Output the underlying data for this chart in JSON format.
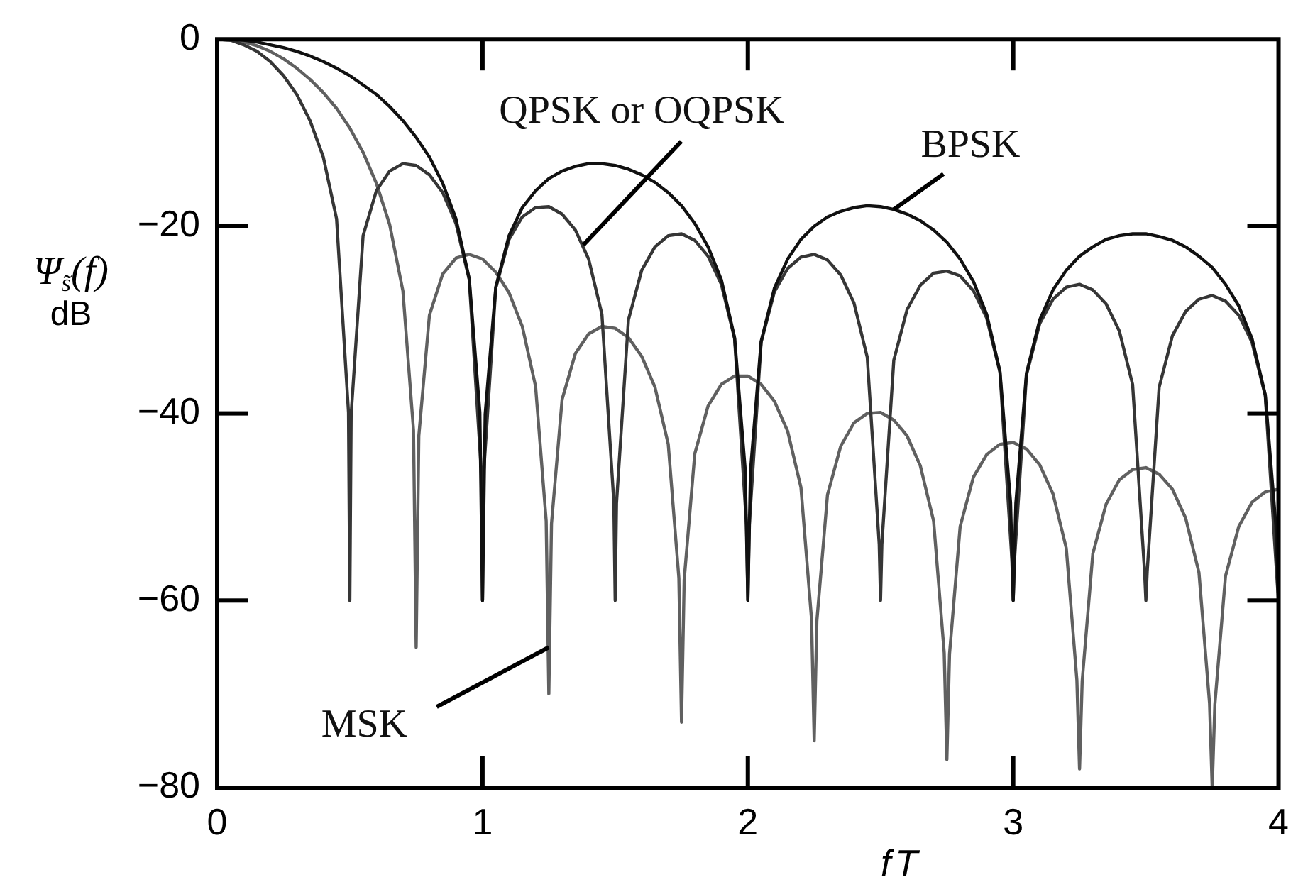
{
  "chart_data": {
    "type": "line",
    "xlabel": "fT",
    "ylabel": "Ψ$_{s̃}$(f)\ndB",
    "xlim": [
      0,
      4
    ],
    "xticks": [
      0,
      1,
      2,
      3,
      4
    ],
    "ylim": [
      -80,
      0
    ],
    "yticks": [
      {
        "value": -80,
        "label": "−80"
      },
      {
        "value": -60,
        "label": "−60"
      },
      {
        "value": -40,
        "label": "−40"
      },
      {
        "value": -20,
        "label": "−20"
      },
      0
    ],
    "annotations": [
      {
        "text": "QPSK or OQPSK",
        "x": 1.38,
        "y": -22
      },
      {
        "text": "BPSK",
        "x": 2.55,
        "y": -18.2
      },
      {
        "text": "MSK",
        "x": 1.25,
        "y": -65
      }
    ],
    "series": [
      {
        "color": "#111111",
        "x": [
          0,
          0.05,
          0.1,
          0.15,
          0.2,
          0.25,
          0.3,
          0.35,
          0.4,
          0.45,
          0.5,
          0.55,
          0.6,
          0.65,
          0.7,
          0.75,
          0.8,
          0.85,
          0.9,
          0.95,
          0.99,
          1,
          1.01,
          1.05,
          1.1,
          1.15,
          1.2,
          1.25,
          1.3,
          1.35,
          1.4,
          1.45,
          1.5,
          1.55,
          1.6,
          1.65,
          1.7,
          1.75,
          1.8,
          1.85,
          1.9,
          1.95,
          1.99,
          2,
          2.01,
          2.05,
          2.1,
          2.15,
          2.2,
          2.25,
          2.3,
          2.35,
          2.4,
          2.45,
          2.5,
          2.55,
          2.6,
          2.65,
          2.7,
          2.75,
          2.8,
          2.85,
          2.9,
          2.95,
          2.99,
          3,
          3.01,
          3.05,
          3.1,
          3.15,
          3.2,
          3.25,
          3.3,
          3.35,
          3.4,
          3.45,
          3.5,
          3.55,
          3.6,
          3.65,
          3.7,
          3.75,
          3.8,
          3.85,
          3.9,
          3.95,
          3.99,
          4
        ],
        "values": [
          0,
          0,
          -0.1,
          -0.3,
          -0.6,
          -0.9,
          -1.3,
          -1.8,
          -2.4,
          -3.1,
          -3.9,
          -4.9,
          -5.9,
          -7.2,
          -8.7,
          -10.5,
          -12.6,
          -15.4,
          -19.2,
          -25.6,
          -39.9,
          -60,
          -40.1,
          -26.5,
          -21.0,
          -18.0,
          -16.2,
          -14.9,
          -14.1,
          -13.6,
          -13.3,
          -13.3,
          -13.5,
          -13.9,
          -14.5,
          -15.3,
          -16.4,
          -17.8,
          -19.7,
          -22.2,
          -25.7,
          -31.9,
          -46.0,
          -60,
          -46.1,
          -32.3,
          -26.6,
          -23.5,
          -21.4,
          -20.0,
          -19.0,
          -18.4,
          -18.0,
          -17.8,
          -17.9,
          -18.2,
          -18.7,
          -19.4,
          -20.4,
          -21.7,
          -23.5,
          -25.9,
          -29.4,
          -35.5,
          -49.5,
          -60,
          -49.6,
          -35.7,
          -30.0,
          -26.8,
          -24.7,
          -23.2,
          -22.2,
          -21.4,
          -21.0,
          -20.8,
          -20.8,
          -21.1,
          -21.5,
          -22.2,
          -23.2,
          -24.4,
          -26.2,
          -28.5,
          -32.0,
          -38.0,
          -52.0,
          -60
        ]
      },
      {
        "color": "#363636",
        "x": [
          0,
          0.05,
          0.1,
          0.15,
          0.2,
          0.25,
          0.3,
          0.35,
          0.4,
          0.45,
          0.495,
          0.5,
          0.505,
          0.55,
          0.6,
          0.65,
          0.7,
          0.75,
          0.8,
          0.85,
          0.9,
          0.95,
          0.995,
          1,
          1.005,
          1.05,
          1.1,
          1.15,
          1.2,
          1.25,
          1.3,
          1.35,
          1.4,
          1.45,
          1.495,
          1.5,
          1.505,
          1.55,
          1.6,
          1.65,
          1.7,
          1.75,
          1.8,
          1.85,
          1.9,
          1.95,
          1.995,
          2,
          2.005,
          2.05,
          2.1,
          2.15,
          2.2,
          2.25,
          2.3,
          2.35,
          2.4,
          2.45,
          2.495,
          2.5,
          2.505,
          2.55,
          2.6,
          2.65,
          2.7,
          2.75,
          2.8,
          2.85,
          2.9,
          2.95,
          2.995,
          3,
          3.005,
          3.05,
          3.1,
          3.15,
          3.2,
          3.25,
          3.3,
          3.35,
          3.4,
          3.45,
          3.495,
          3.5,
          3.505,
          3.55,
          3.6,
          3.65,
          3.7,
          3.75,
          3.8,
          3.85,
          3.9,
          3.95,
          3.995,
          4
        ],
        "values": [
          0,
          -0.1,
          -0.6,
          -1.3,
          -2.4,
          -3.9,
          -5.9,
          -8.7,
          -12.6,
          -19.2,
          -39.9,
          -60,
          -40.1,
          -21.0,
          -16.2,
          -14.1,
          -13.3,
          -13.5,
          -14.5,
          -16.4,
          -19.7,
          -25.7,
          -46.0,
          -60,
          -46.1,
          -26.6,
          -21.4,
          -19.0,
          -18.0,
          -17.9,
          -18.7,
          -20.4,
          -23.5,
          -29.4,
          -49.5,
          -60,
          -49.6,
          -30.0,
          -24.7,
          -22.2,
          -21.0,
          -20.8,
          -21.5,
          -23.2,
          -26.2,
          -32.0,
          -52.0,
          -60,
          -52.1,
          -32.4,
          -27.0,
          -24.5,
          -23.3,
          -23.0,
          -23.6,
          -25.2,
          -28.2,
          -34.0,
          -54.0,
          -60,
          -54.0,
          -34.3,
          -28.9,
          -26.3,
          -25.0,
          -24.8,
          -25.3,
          -26.9,
          -29.8,
          -35.6,
          -55.6,
          -60,
          -55.6,
          -35.9,
          -30.4,
          -27.8,
          -26.5,
          -26.2,
          -26.8,
          -28.3,
          -31.2,
          -36.9,
          -56.9,
          -60,
          -56.9,
          -37.2,
          -31.7,
          -29.1,
          -27.8,
          -27.4,
          -28.0,
          -29.5,
          -32.4,
          -38.1,
          -58.1,
          -60
        ]
      },
      {
        "color": "#606060",
        "x": [
          0,
          0.05,
          0.1,
          0.15,
          0.2,
          0.25,
          0.3,
          0.35,
          0.4,
          0.45,
          0.5,
          0.55,
          0.6,
          0.65,
          0.7,
          0.74,
          0.75,
          0.76,
          0.8,
          0.85,
          0.9,
          0.95,
          1,
          1.05,
          1.1,
          1.15,
          1.2,
          1.24,
          1.25,
          1.26,
          1.3,
          1.35,
          1.4,
          1.45,
          1.5,
          1.55,
          1.6,
          1.65,
          1.7,
          1.74,
          1.75,
          1.76,
          1.8,
          1.85,
          1.9,
          1.95,
          2,
          2.05,
          2.1,
          2.15,
          2.2,
          2.24,
          2.25,
          2.26,
          2.3,
          2.35,
          2.4,
          2.45,
          2.5,
          2.55,
          2.6,
          2.65,
          2.7,
          2.74,
          2.75,
          2.76,
          2.8,
          2.85,
          2.9,
          2.95,
          3,
          3.05,
          3.1,
          3.15,
          3.2,
          3.24,
          3.25,
          3.26,
          3.3,
          3.35,
          3.4,
          3.45,
          3.5,
          3.55,
          3.6,
          3.65,
          3.7,
          3.74,
          3.75,
          3.76,
          3.8,
          3.85,
          3.9,
          3.95,
          4
        ],
        "values": [
          0,
          -0.1,
          -0.3,
          -0.7,
          -1.3,
          -2.1,
          -3.1,
          -4.3,
          -5.7,
          -7.4,
          -9.5,
          -12.1,
          -15.4,
          -19.8,
          -26.9,
          -41.8,
          -65,
          -42.4,
          -29.5,
          -25.1,
          -23.4,
          -23.0,
          -23.5,
          -24.9,
          -27.1,
          -30.7,
          -37.1,
          -51.5,
          -70,
          -51.8,
          -38.5,
          -33.6,
          -31.5,
          -30.7,
          -30.9,
          -31.9,
          -33.9,
          -37.2,
          -43.3,
          -57.6,
          -73,
          -57.8,
          -44.3,
          -39.2,
          -36.9,
          -36.0,
          -36.0,
          -36.9,
          -38.7,
          -41.9,
          -47.9,
          -62.0,
          -75,
          -62.2,
          -48.7,
          -43.5,
          -41.0,
          -40.0,
          -39.9,
          -40.7,
          -42.4,
          -45.6,
          -51.5,
          -65.6,
          -77,
          -65.7,
          -52.1,
          -46.8,
          -44.4,
          -43.3,
          -43.1,
          -43.8,
          -45.5,
          -48.6,
          -54.4,
          -68.5,
          -78,
          -68.6,
          -55.0,
          -49.7,
          -47.1,
          -46.0,
          -45.8,
          -46.5,
          -48.1,
          -51.2,
          -57.0,
          -71.0,
          -80,
          -71.1,
          -57.4,
          -52.1,
          -49.5,
          -48.4,
          -48.1
        ]
      }
    ]
  }
}
